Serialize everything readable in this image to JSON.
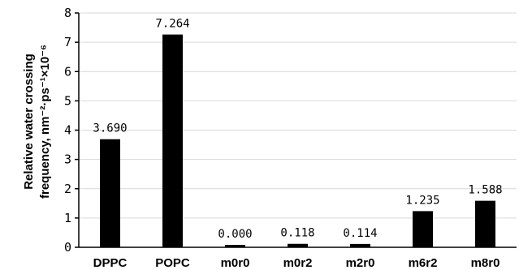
{
  "chart_data": {
    "type": "bar",
    "categories": [
      "DPPC",
      "POPC",
      "m0r0",
      "m0r2",
      "m2r0",
      "m6r2",
      "m8r0"
    ],
    "values": [
      3.69,
      7.264,
      0.0,
      0.118,
      0.114,
      1.235,
      1.588
    ],
    "data_labels": [
      "3.690",
      "7.264",
      "0.000",
      "0.118",
      "0.114",
      "1.235",
      "1.588"
    ],
    "ylabel_line1": "Relative water crossing",
    "ylabel_line2": "frequency, nm⁻²·ps⁻¹×10⁻⁶",
    "ylim": [
      0,
      8
    ],
    "yticks": [
      "0",
      "1",
      "2",
      "3",
      "4",
      "5",
      "6",
      "7",
      "8"
    ],
    "grid": true,
    "bar_color": "#000000",
    "grid_color": "#d9d9d9"
  }
}
